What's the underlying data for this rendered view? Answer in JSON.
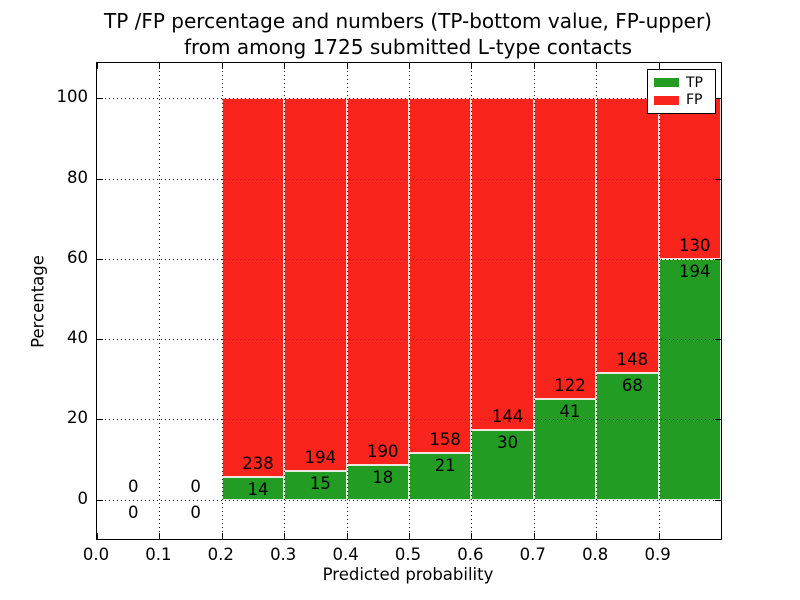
{
  "title": {
    "line1": "TP /FP percentage and numbers (TP-bottom value, FP-upper)",
    "line2": "from among 1725 submitted L-type contacts"
  },
  "axes": {
    "xlabel": "Predicted probability",
    "ylabel": "Percentage"
  },
  "legend": {
    "items": [
      {
        "label": "TP",
        "color": "#229c22"
      },
      {
        "label": "FP",
        "color": "#f9241c"
      }
    ]
  },
  "colors": {
    "tp": "#229c22",
    "fp": "#f9241c",
    "axis": "#000000",
    "grid": "#1a1a1a"
  },
  "chart_data": {
    "type": "bar",
    "stacked": true,
    "title": "TP /FP percentage and numbers (TP-bottom value, FP-upper) from among 1725 submitted L-type contacts",
    "xlabel": "Predicted probability",
    "ylabel": "Percentage",
    "total_submitted": 1725,
    "xlim": [
      0,
      1.0
    ],
    "ylim": [
      -9.8,
      108.8
    ],
    "grid": true,
    "legend_position": "upper right",
    "x_tick_values": [
      0.0,
      0.1,
      0.2,
      0.3,
      0.4,
      0.5,
      0.6,
      0.7,
      0.8,
      0.9
    ],
    "x_tick_labels": [
      "0.0",
      "0.1",
      "0.2",
      "0.3",
      "0.4",
      "0.5",
      "0.6",
      "0.7",
      "0.8",
      "0.9"
    ],
    "y_tick_values": [
      0,
      20,
      40,
      60,
      80,
      100
    ],
    "y_tick_labels": [
      "0",
      "20",
      "40",
      "60",
      "80",
      "100"
    ],
    "series": [
      {
        "name": "TP",
        "color": "#229c22"
      },
      {
        "name": "FP",
        "color": "#f9241c"
      }
    ],
    "bins": [
      {
        "x0": 0.0,
        "x1": 0.1,
        "tp_count": 0,
        "fp_count": 0,
        "tp_pct": 0,
        "fp_pct": 0,
        "has_bar": false
      },
      {
        "x0": 0.1,
        "x1": 0.2,
        "tp_count": 0,
        "fp_count": 0,
        "tp_pct": 0,
        "fp_pct": 0,
        "has_bar": false
      },
      {
        "x0": 0.2,
        "x1": 0.3,
        "tp_count": 14,
        "fp_count": 238,
        "tp_pct": 5.56,
        "fp_pct": 94.44,
        "has_bar": true
      },
      {
        "x0": 0.3,
        "x1": 0.4,
        "tp_count": 15,
        "fp_count": 194,
        "tp_pct": 7.18,
        "fp_pct": 92.82,
        "has_bar": true
      },
      {
        "x0": 0.4,
        "x1": 0.5,
        "tp_count": 18,
        "fp_count": 190,
        "tp_pct": 8.65,
        "fp_pct": 91.35,
        "has_bar": true
      },
      {
        "x0": 0.5,
        "x1": 0.6,
        "tp_count": 21,
        "fp_count": 158,
        "tp_pct": 11.73,
        "fp_pct": 88.27,
        "has_bar": true
      },
      {
        "x0": 0.6,
        "x1": 0.7,
        "tp_count": 30,
        "fp_count": 144,
        "tp_pct": 17.24,
        "fp_pct": 82.76,
        "has_bar": true
      },
      {
        "x0": 0.7,
        "x1": 0.8,
        "tp_count": 41,
        "fp_count": 122,
        "tp_pct": 25.15,
        "fp_pct": 74.85,
        "has_bar": true
      },
      {
        "x0": 0.8,
        "x1": 0.9,
        "tp_count": 68,
        "fp_count": 148,
        "tp_pct": 31.48,
        "fp_pct": 68.52,
        "has_bar": true
      },
      {
        "x0": 0.9,
        "x1": 1.0,
        "tp_count": 194,
        "fp_count": 130,
        "tp_pct": 59.88,
        "fp_pct": 40.12,
        "has_bar": true
      }
    ]
  }
}
